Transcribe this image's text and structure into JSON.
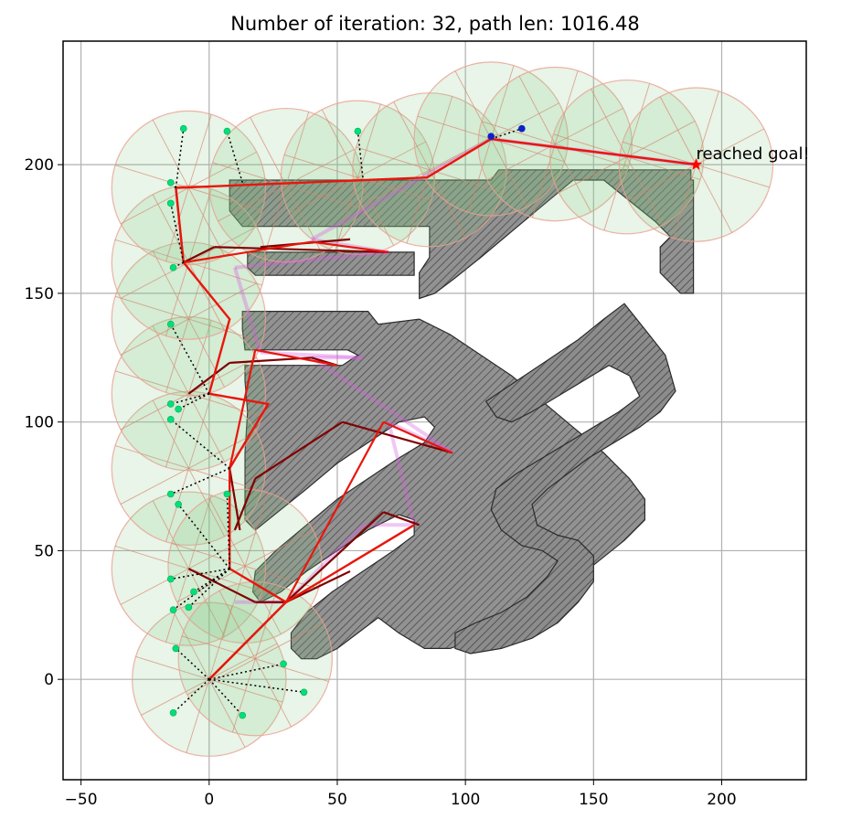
{
  "chart_data": {
    "type": "scatter",
    "title": "Number of iteration: 32, path len: 1016.48",
    "xlabel": "",
    "ylabel": "",
    "xlim": [
      -57,
      233
    ],
    "ylim": [
      -39,
      248
    ],
    "grid": true,
    "x_ticks": [
      -50,
      0,
      50,
      100,
      150,
      200
    ],
    "y_ticks": [
      0,
      50,
      100,
      150,
      200
    ],
    "x_tick_labels": [
      "−50",
      "0",
      "50",
      "100",
      "150",
      "200"
    ],
    "y_tick_labels": [
      "0",
      "50",
      "100",
      "150",
      "200"
    ],
    "start": [
      0,
      0
    ],
    "goal": [
      190,
      200
    ],
    "annotation": {
      "text": "reached goal!",
      "x": 190,
      "y": 200
    },
    "obstacles": [
      [
        [
          8,
          190
        ],
        [
          13,
          193
        ],
        [
          193,
          193
        ],
        [
          193,
          198
        ],
        [
          189,
          198
        ],
        [
          189,
          170
        ],
        [
          180,
          170
        ],
        [
          180,
          180
        ],
        [
          175,
          180
        ],
        [
          175,
          170
        ],
        [
          177,
          165
        ],
        [
          180,
          162
        ],
        [
          180,
          150
        ],
        [
          176,
          150
        ],
        [
          162,
          160
        ],
        [
          140,
          178
        ],
        [
          110,
          196
        ],
        [
          112,
          186
        ],
        [
          96,
          174
        ],
        [
          82,
          160
        ],
        [
          72,
          150
        ],
        [
          62,
          140
        ],
        [
          55,
          128
        ],
        [
          50,
          121
        ],
        [
          44,
          113
        ],
        [
          40,
          106
        ],
        [
          37,
          94
        ],
        [
          30,
          86
        ],
        [
          15,
          64
        ],
        [
          12,
          58
        ],
        [
          20,
          70
        ],
        [
          32,
          78
        ],
        [
          50,
          90
        ],
        [
          58,
          98
        ],
        [
          62,
          104
        ],
        [
          65,
          110
        ],
        [
          72,
          112
        ],
        [
          85,
          105
        ],
        [
          96,
          95
        ],
        [
          100,
          85
        ],
        [
          108,
          78
        ],
        [
          118,
          70
        ],
        [
          128,
          60
        ],
        [
          138,
          55
        ],
        [
          160,
          60
        ],
        [
          172,
          65
        ],
        [
          182,
          70
        ],
        [
          186,
          80
        ],
        [
          180,
          90
        ],
        [
          170,
          98
        ],
        [
          160,
          104
        ],
        [
          148,
          112
        ],
        [
          140,
          118
        ],
        [
          130,
          122
        ],
        [
          120,
          123
        ],
        [
          112,
          116
        ],
        [
          106,
          108
        ],
        [
          100,
          104
        ],
        [
          92,
          100
        ],
        [
          85,
          95
        ],
        [
          80,
          90
        ],
        [
          72,
          82
        ],
        [
          66,
          76
        ],
        [
          60,
          72
        ],
        [
          60,
          64
        ],
        [
          64,
          56
        ],
        [
          70,
          48
        ],
        [
          76,
          42
        ],
        [
          82,
          36
        ],
        [
          88,
          32
        ],
        [
          92,
          28
        ],
        [
          96,
          26
        ],
        [
          104,
          22
        ],
        [
          110,
          20
        ],
        [
          115,
          24
        ],
        [
          118,
          28
        ],
        [
          125,
          32
        ],
        [
          130,
          35
        ],
        [
          132,
          40
        ],
        [
          138,
          46
        ],
        [
          145,
          52
        ],
        [
          150,
          58
        ],
        [
          158,
          62
        ],
        [
          165,
          66
        ],
        [
          170,
          70
        ],
        [
          174,
          76
        ],
        [
          175,
          82
        ],
        [
          170,
          88
        ],
        [
          164,
          94
        ],
        [
          158,
          99
        ],
        [
          154,
          102
        ],
        [
          146,
          108
        ],
        [
          138,
          114
        ]
      ]
    ],
    "obstacle_polygons": [
      [
        [
          8,
          194
        ],
        [
          8,
          176
        ],
        [
          83,
          176
        ],
        [
          83,
          167
        ],
        [
          15,
          167
        ],
        [
          15,
          156
        ],
        [
          13,
          150
        ],
        [
          13,
          138
        ],
        [
          22,
          136
        ],
        [
          75,
          136
        ],
        [
          75,
          126
        ],
        [
          80,
          126
        ],
        [
          90,
          134
        ],
        [
          100,
          142
        ],
        [
          118,
          154
        ],
        [
          130,
          162
        ],
        [
          140,
          168
        ],
        [
          152,
          178
        ],
        [
          160,
          188
        ],
        [
          175,
          192
        ],
        [
          189,
          192
        ],
        [
          189,
          198
        ],
        [
          193,
          198
        ],
        [
          193,
          193
        ],
        [
          189,
          193
        ],
        [
          189,
          150
        ],
        [
          180,
          150
        ],
        [
          175,
          156
        ],
        [
          175,
          165
        ],
        [
          177,
          168
        ],
        [
          168,
          178
        ],
        [
          150,
          194
        ],
        [
          145,
          198
        ],
        [
          113,
          198
        ],
        [
          113,
          194
        ],
        [
          110,
          192
        ],
        [
          95,
          196
        ],
        [
          25,
          196
        ],
        [
          8,
          194
        ]
      ],
      [
        [
          13,
          143
        ],
        [
          13,
          128
        ],
        [
          55,
          128
        ],
        [
          60,
          122
        ],
        [
          58,
          115
        ],
        [
          43,
          113
        ],
        [
          15,
          113
        ],
        [
          12,
          105
        ],
        [
          12,
          85
        ],
        [
          14,
          72
        ],
        [
          14,
          60
        ],
        [
          18,
          54
        ],
        [
          30,
          64
        ],
        [
          50,
          80
        ],
        [
          62,
          88
        ],
        [
          68,
          94
        ],
        [
          75,
          90
        ],
        [
          78,
          85
        ],
        [
          82,
          82
        ],
        [
          85,
          86
        ],
        [
          90,
          92
        ],
        [
          100,
          105
        ],
        [
          108,
          115
        ],
        [
          112,
          120
        ],
        [
          120,
          120
        ],
        [
          124,
          115
        ],
        [
          130,
          110
        ],
        [
          138,
          105
        ],
        [
          145,
          100
        ],
        [
          150,
          95
        ],
        [
          160,
          90
        ],
        [
          168,
          85
        ],
        [
          172,
          80
        ],
        [
          175,
          75
        ],
        [
          175,
          70
        ],
        [
          165,
          60
        ],
        [
          155,
          52
        ],
        [
          150,
          45
        ],
        [
          148,
          35
        ],
        [
          140,
          30
        ],
        [
          130,
          28
        ],
        [
          118,
          28
        ],
        [
          108,
          30
        ],
        [
          100,
          36
        ],
        [
          95,
          42
        ],
        [
          88,
          48
        ],
        [
          84,
          55
        ],
        [
          76,
          62
        ],
        [
          72,
          66
        ],
        [
          62,
          70
        ],
        [
          54,
          66
        ],
        [
          40,
          58
        ],
        [
          30,
          48
        ],
        [
          22,
          40
        ],
        [
          18,
          36
        ],
        [
          20,
          30
        ],
        [
          28,
          24
        ],
        [
          36,
          18
        ],
        [
          44,
          12
        ],
        [
          50,
          8
        ],
        [
          58,
          6
        ],
        [
          68,
          10
        ],
        [
          80,
          18
        ],
        [
          92,
          28
        ],
        [
          102,
          38
        ],
        [
          112,
          48
        ],
        [
          124,
          60
        ],
        [
          136,
          70
        ],
        [
          140,
          68
        ],
        [
          150,
          64
        ],
        [
          165,
          68
        ],
        [
          172,
          72
        ],
        [
          178,
          80
        ],
        [
          180,
          90
        ],
        [
          178,
          100
        ],
        [
          172,
          110
        ],
        [
          165,
          118
        ],
        [
          160,
          124
        ],
        [
          152,
          130
        ],
        [
          142,
          138
        ],
        [
          132,
          146
        ],
        [
          122,
          152
        ],
        [
          112,
          154
        ],
        [
          100,
          152
        ],
        [
          92,
          148
        ],
        [
          82,
          142
        ],
        [
          72,
          136
        ],
        [
          65,
          132
        ],
        [
          60,
          136
        ],
        [
          56,
          140
        ],
        [
          50,
          143
        ],
        [
          13,
          143
        ]
      ]
    ]
  }
}
